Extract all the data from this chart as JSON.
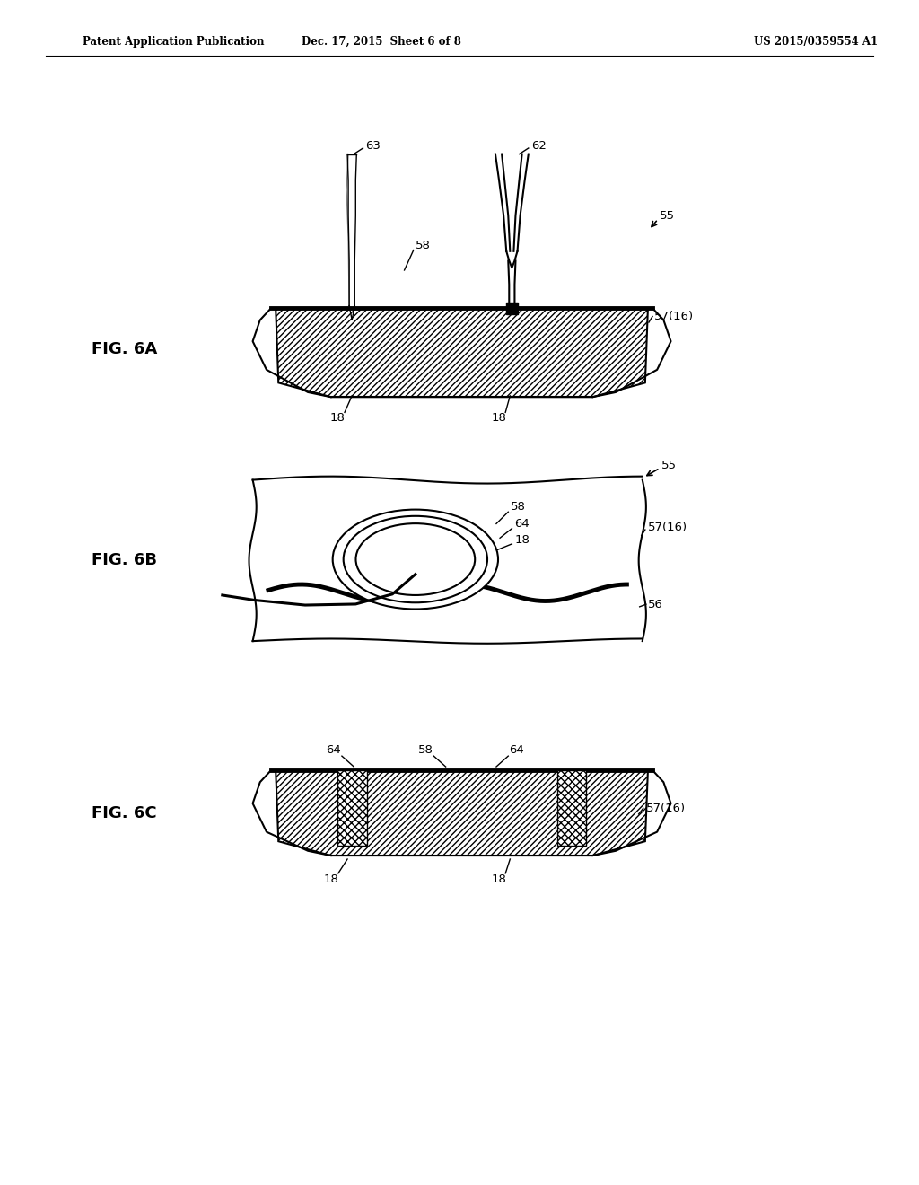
{
  "bg_color": "#ffffff",
  "ec": "#000000",
  "header_left": "Patent Application Publication",
  "header_mid": "Dec. 17, 2015  Sheet 6 of 8",
  "header_right": "US 2015/0359554 A1",
  "lw_thin": 1.0,
  "lw_med": 1.5,
  "lw_thick": 2.2,
  "lw_heavy": 3.5,
  "fig6A_label": "FIG. 6A",
  "fig6B_label": "FIG. 6B",
  "fig6C_label": "FIG. 6C"
}
